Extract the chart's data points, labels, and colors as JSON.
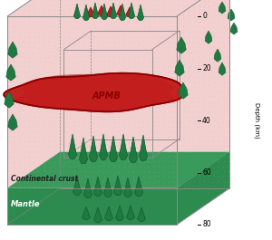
{
  "pink_bg": "#f2d0d0",
  "pink_dots": "#d8a8a8",
  "mantle_color": "#2d8b50",
  "mantle_top_color": "#3a9a5c",
  "apmb_main": "#c41c1c",
  "apmb_dark": "#8b0000",
  "apmb_mid": "#b02020",
  "green_magma": "#1e7a40",
  "green_edge": "#145c30",
  "edge_color": "#aaaaaa",
  "depth_ticks": [
    0,
    20,
    40,
    60,
    80
  ],
  "depth_label": "Depth (km)",
  "cc_label": "Continental crust",
  "mantle_label": "Mantle",
  "apmb_label": "APMB",
  "white": "#ffffff"
}
